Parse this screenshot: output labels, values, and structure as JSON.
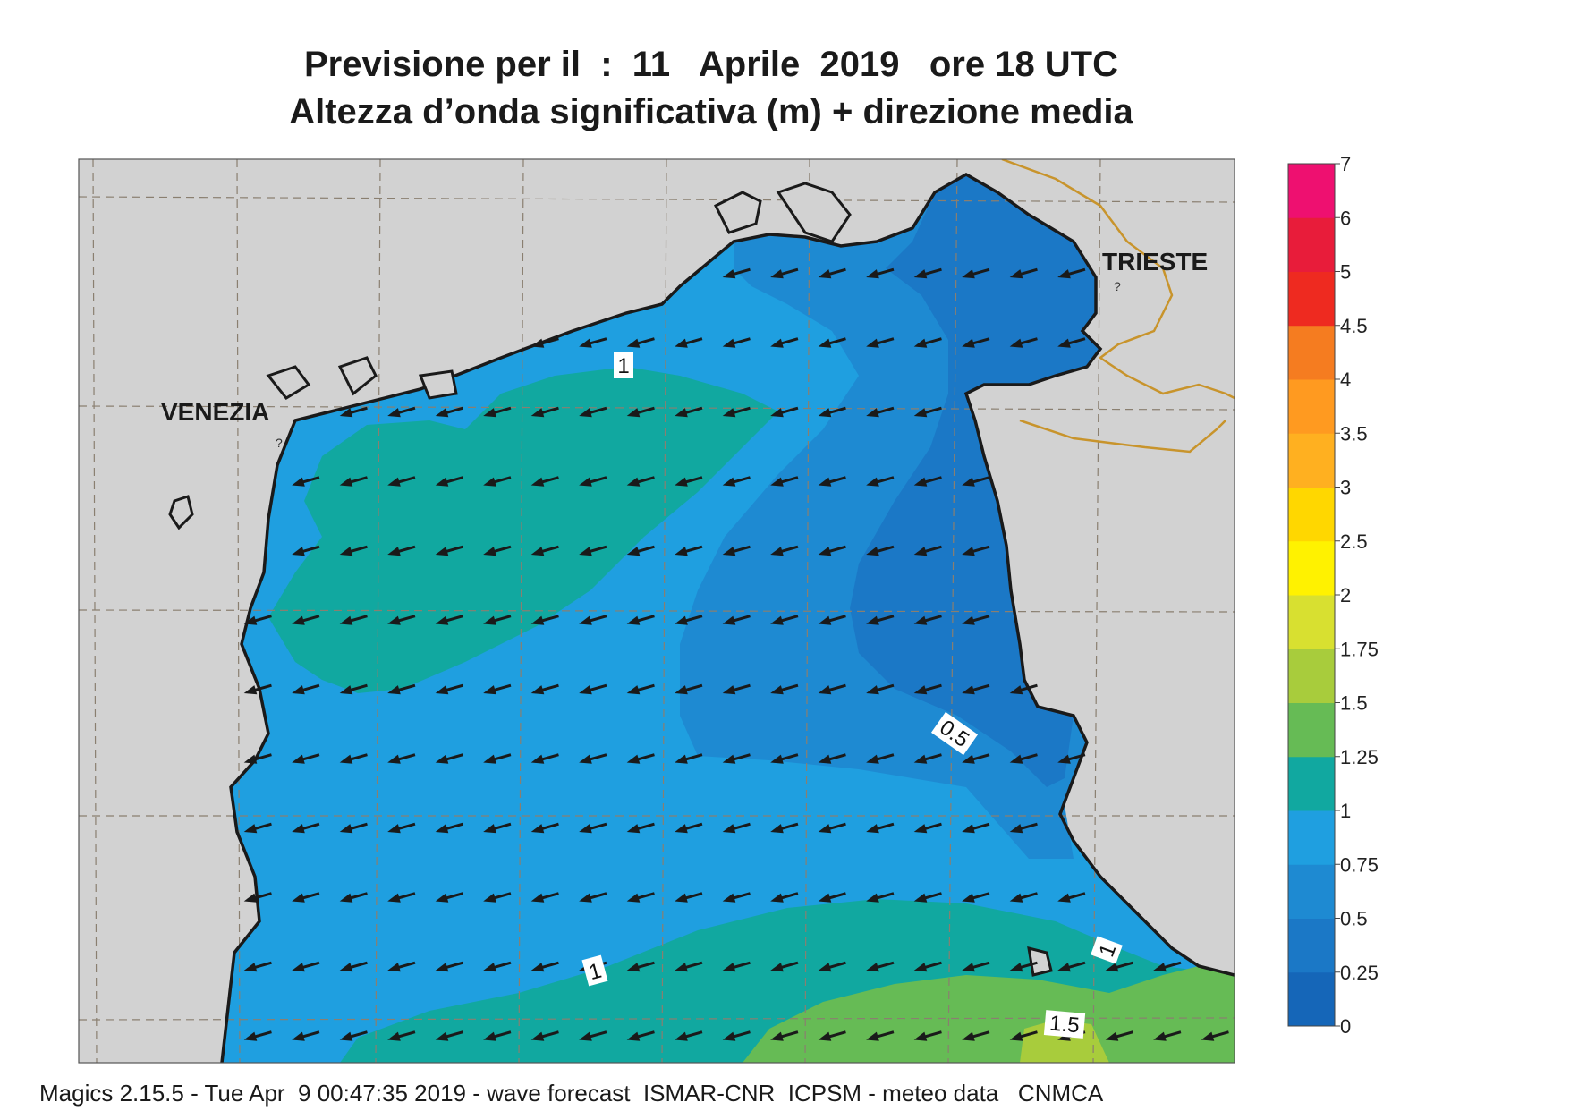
{
  "title": {
    "line1": "Previsione per il  :  11   Aprile  2019   ore 18 UTC",
    "line2": "Altezza d’onda significativa (m) + direzione media"
  },
  "cities": [
    {
      "name": "VENEZIA"
    },
    {
      "name": "TRIESTE"
    }
  ],
  "contour_labels": [
    "1",
    "0.5",
    "1",
    "1",
    "1.5"
  ],
  "colorbar": {
    "unit": "m",
    "ticks": [
      "0",
      "0.25",
      "0.5",
      "0.75",
      "1",
      "1.25",
      "1.5",
      "1.75",
      "2",
      "2.5",
      "3",
      "3.5",
      "4",
      "4.5",
      "5",
      "6",
      "7"
    ],
    "colors": [
      "#1566b8",
      "#1b78c6",
      "#1e8ad2",
      "#1f9fe0",
      "#11a8a0",
      "#66bb55",
      "#a8cc3c",
      "#d8e030",
      "#fff200",
      "#ffd700",
      "#ffb020",
      "#ff9a20",
      "#f57c20",
      "#ee2a20",
      "#e81c3a",
      "#ee1070"
    ]
  },
  "land_color": "#d2d2d2",
  "wave_direction": "from east-northeast (arrows pointing west-southwest)",
  "footer": "Magics 2.15.5 - Tue Apr  9 00:47:35 2019 - wave forecast  ISMAR-CNR  ICPSM - meteo data   CNMCA"
}
